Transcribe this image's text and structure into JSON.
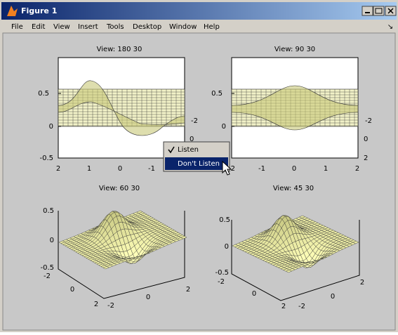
{
  "window": {
    "title": "Figure 1"
  },
  "menu": [
    "File",
    "Edit",
    "View",
    "Insert",
    "Tools",
    "Desktop",
    "Window",
    "Help"
  ],
  "subplots": [
    {
      "title": "View: 180 30",
      "labels": [
        "0.5",
        "0",
        "-0.5",
        "2",
        "1",
        "0",
        "-1",
        "-2",
        "0"
      ]
    },
    {
      "title": "View: 90 30",
      "labels": [
        "0.5",
        "0",
        "-0.5",
        "-2",
        "-1",
        "0",
        "1",
        "2",
        "-2",
        "0",
        "2"
      ]
    },
    {
      "title": "View: 60 30",
      "labels": [
        "0.5",
        "0",
        "-0.5",
        "-2",
        "0",
        "2",
        "-2",
        "0",
        "2"
      ]
    },
    {
      "title": "View: 45 30",
      "labels": [
        "0.5",
        "0",
        "-0.5",
        "-2",
        "0",
        "2",
        "-2",
        "0",
        "2"
      ]
    }
  ],
  "context_menu": [
    "Listen",
    "Don't Listen"
  ]
}
